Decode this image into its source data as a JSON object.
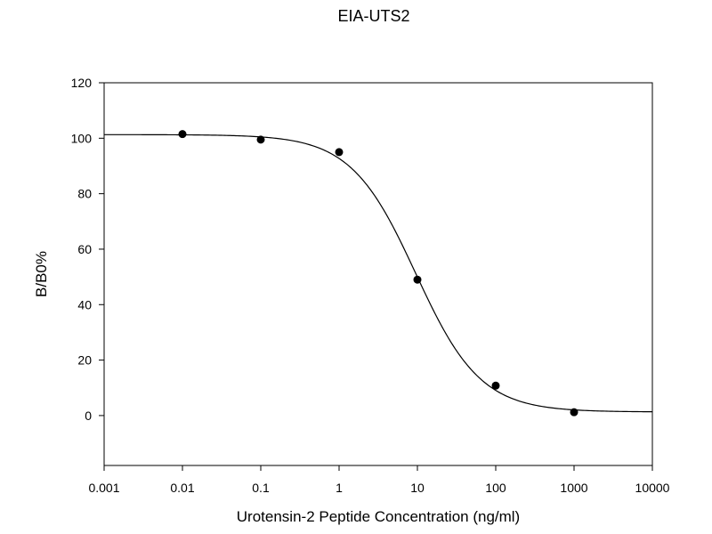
{
  "chart_data": {
    "type": "scatter",
    "title": "EIA-UTS2",
    "xlabel": "Urotensin-2 Peptide Concentration (ng/ml)",
    "ylabel": "B/B0%",
    "x_scale": "log",
    "xlim": [
      0.001,
      10000
    ],
    "ylim": [
      -18,
      120
    ],
    "x_ticks": [
      0.001,
      0.01,
      0.1,
      1,
      10,
      100,
      1000,
      10000
    ],
    "x_tick_labels": [
      "0.001",
      "0.01",
      "0.1",
      "1",
      "10",
      "100",
      "1000",
      "10000"
    ],
    "y_ticks": [
      0,
      20,
      40,
      60,
      80,
      100,
      120
    ],
    "y_tick_labels": [
      "0",
      "20",
      "40",
      "60",
      "80",
      "100",
      "120"
    ],
    "grid": false,
    "legend": false,
    "series": [
      {
        "points": [
          {
            "x": 0.01,
            "y": 101.5
          },
          {
            "x": 0.1,
            "y": 99.5
          },
          {
            "x": 1,
            "y": 95
          },
          {
            "x": 10,
            "y": 49
          },
          {
            "x": 100,
            "y": 10.8
          },
          {
            "x": 1000,
            "y": 1.2
          }
        ],
        "marker_color": "#000000"
      }
    ],
    "fit_curve": {
      "model": "4-parameter logistic",
      "top": 101.3,
      "bottom": 1.3,
      "ec50": 9.5,
      "hill_slope": 1.05,
      "color": "#000000"
    }
  }
}
